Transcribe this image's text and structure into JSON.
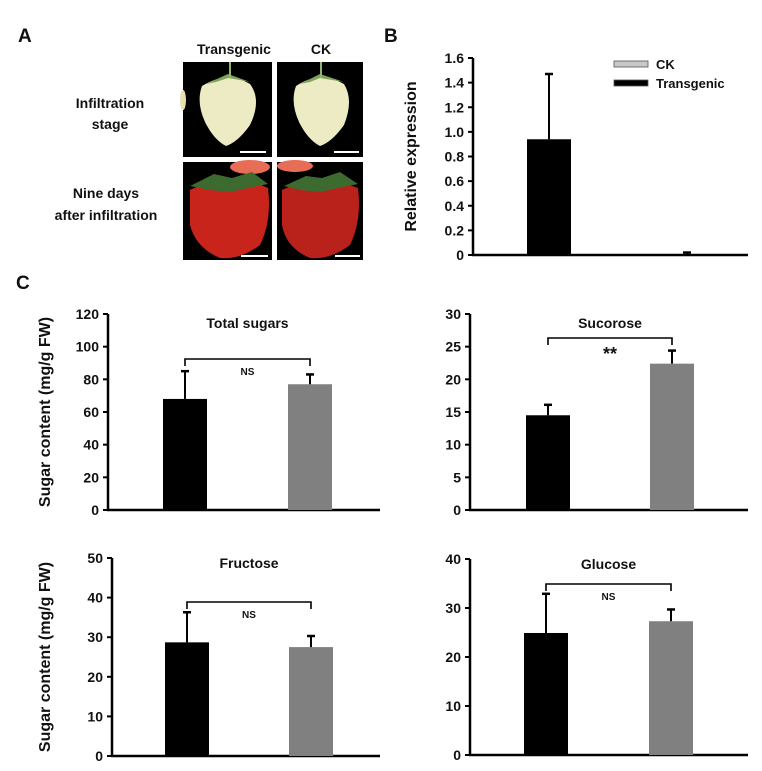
{
  "panels": {
    "A": {
      "letter": "A",
      "column_headers": [
        "Transgenic",
        "CK"
      ],
      "row_labels": [
        [
          "Infiltration",
          "stage"
        ],
        [
          "Nine days",
          "after infiltration"
        ]
      ],
      "images": [
        {
          "row": 0,
          "col": 0,
          "stage": "white",
          "description": "white strawberry, transgenic, infiltration stage"
        },
        {
          "row": 0,
          "col": 1,
          "stage": "white",
          "description": "white strawberry, CK, infiltration stage"
        },
        {
          "row": 1,
          "col": 0,
          "stage": "red",
          "description": "red strawberry, transgenic, nine days after infiltration"
        },
        {
          "row": 1,
          "col": 1,
          "stage": "red",
          "description": "red strawberry, CK, nine days after infiltration"
        }
      ]
    },
    "B": {
      "letter": "B"
    },
    "C": {
      "letter": "C"
    }
  },
  "colors": {
    "transgenic": "#000000",
    "ck_B": "#c8c8c8",
    "ck_C": "#808080"
  },
  "chart_data": [
    {
      "id": "B",
      "type": "bar",
      "title": "",
      "xlabel": "",
      "ylabel": "Relative expression",
      "ylim": [
        0,
        1.6
      ],
      "yticks": [
        "0",
        "0.2",
        "0.4",
        "0.6",
        "0.8",
        "1.0",
        "1.2",
        "1.4",
        "1.6"
      ],
      "categories": [
        "Transgenic",
        "CK"
      ],
      "values": [
        0.94,
        0.0
      ],
      "errors": [
        0.53,
        0.02
      ],
      "legend": [
        "CK",
        "Transgenic"
      ],
      "legend_position": "top-right",
      "grid": false
    },
    {
      "id": "C-total",
      "type": "bar",
      "title": "Total sugars",
      "xlabel": "",
      "ylabel": "Sugar content (mg/g FW)",
      "ylim": [
        0,
        120
      ],
      "yticks": [
        "0",
        "20",
        "40",
        "60",
        "80",
        "100",
        "120"
      ],
      "categories": [
        "Transgenic",
        "CK"
      ],
      "values": [
        68,
        77
      ],
      "errors": [
        17,
        6
      ],
      "significance": "NS",
      "grid": false
    },
    {
      "id": "C-sucrose",
      "type": "bar",
      "title": "Sucorose",
      "xlabel": "",
      "ylabel": "",
      "ylim": [
        0,
        30
      ],
      "yticks": [
        "0",
        "5",
        "10",
        "15",
        "20",
        "25",
        "30"
      ],
      "categories": [
        "Transgenic",
        "CK"
      ],
      "values": [
        14.5,
        22.4
      ],
      "errors": [
        1.6,
        2.0
      ],
      "significance": "**",
      "grid": false
    },
    {
      "id": "C-fructose",
      "type": "bar",
      "title": "Fructose",
      "xlabel": "",
      "ylabel": "Sugar content (mg/g FW)",
      "ylim": [
        0,
        50
      ],
      "yticks": [
        "0",
        "10",
        "20",
        "30",
        "40",
        "50"
      ],
      "categories": [
        "Transgenic",
        "CK"
      ],
      "values": [
        28.7,
        27.5
      ],
      "errors": [
        7.6,
        2.8
      ],
      "significance": "NS",
      "grid": false
    },
    {
      "id": "C-glucose",
      "type": "bar",
      "title": "Glucose",
      "xlabel": "",
      "ylabel": "",
      "ylim": [
        0,
        40
      ],
      "yticks": [
        "0",
        "10",
        "20",
        "30",
        "40"
      ],
      "categories": [
        "Transgenic",
        "CK"
      ],
      "values": [
        24.9,
        27.3
      ],
      "errors": [
        8.0,
        2.4
      ],
      "significance": "NS",
      "grid": false
    }
  ]
}
